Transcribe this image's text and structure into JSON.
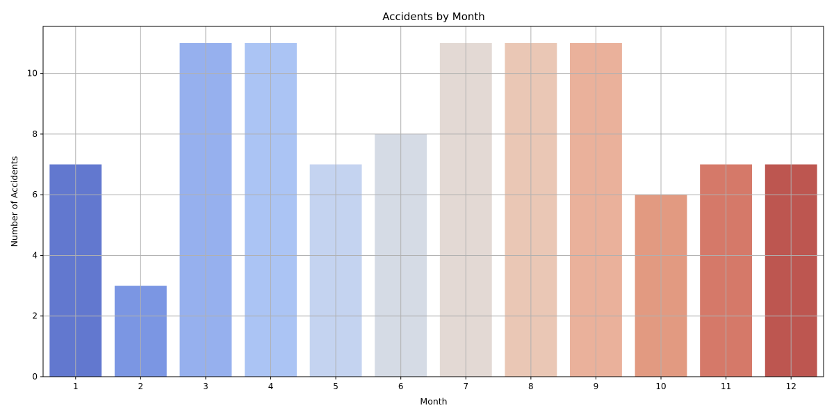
{
  "chart_data": {
    "type": "bar",
    "title": "Accidents by Month",
    "xlabel": "Month",
    "ylabel": "Number of Accidents",
    "categories": [
      "1",
      "2",
      "3",
      "4",
      "5",
      "6",
      "7",
      "8",
      "9",
      "10",
      "11",
      "12"
    ],
    "values": [
      7,
      3,
      11,
      11,
      7,
      8,
      11,
      11,
      11,
      6,
      7,
      7
    ],
    "colors": [
      "#6278cf",
      "#7b96e3",
      "#96b0ee",
      "#abc4f4",
      "#c4d3f0",
      "#d5dbe5",
      "#e3d9d4",
      "#eac7b5",
      "#eab19b",
      "#e29a81",
      "#d57969",
      "#bd5650"
    ],
    "yticks": [
      0,
      2,
      4,
      6,
      8,
      10
    ],
    "ylim": [
      0,
      11.55
    ],
    "grid": true,
    "legend": "none"
  }
}
